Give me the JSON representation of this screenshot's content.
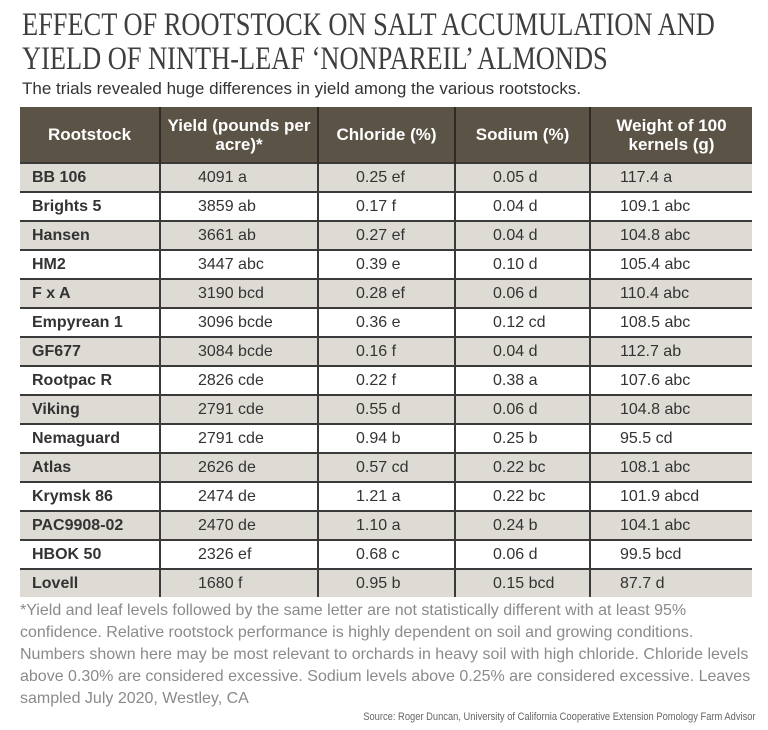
{
  "title_line1": "EFFECT OF ROOTSTOCK ON SALT ACCUMULATION AND",
  "title_line2": "YIELD OF NINTH-LEAF ‘NONPAREIL’ ALMONDS",
  "subtitle": "The trials revealed huge differences in yield among the various rootstocks.",
  "table": {
    "headers": [
      "Rootstock",
      "Yield (pounds per acre)*",
      "Chloride (%)",
      "Sodium (%)",
      "Weight of 100 kernels (g)"
    ],
    "rows": [
      [
        "BB 106",
        "4091 a",
        "0.25 ef",
        "0.05 d",
        "117.4 a"
      ],
      [
        "Brights 5",
        "3859 ab",
        "0.17 f",
        "0.04 d",
        "109.1 abc"
      ],
      [
        "Hansen",
        "3661 ab",
        "0.27 ef",
        "0.04 d",
        "104.8 abc"
      ],
      [
        "HM2",
        "3447 abc",
        "0.39 e",
        "0.10 d",
        "105.4 abc"
      ],
      [
        "F x A",
        "3190 bcd",
        "0.28 ef",
        "0.06 d",
        "110.4 abc"
      ],
      [
        "Empyrean 1",
        "3096 bcde",
        "0.36 e",
        "0.12 cd",
        "108.5 abc"
      ],
      [
        "GF677",
        "3084 bcde",
        "0.16 f",
        "0.04 d",
        "112.7 ab"
      ],
      [
        "Rootpac R",
        "2826 cde",
        "0.22 f",
        "0.38 a",
        "107.6 abc"
      ],
      [
        "Viking",
        "2791 cde",
        "0.55 d",
        "0.06 d",
        "104.8 abc"
      ],
      [
        "Nemaguard",
        "2791 cde",
        "0.94 b",
        "0.25 b",
        "95.5 cd"
      ],
      [
        "Atlas",
        "2626 de",
        "0.57 cd",
        "0.22 bc",
        "108.1 abc"
      ],
      [
        "Krymsk 86",
        "2474 de",
        "1.21 a",
        "0.22 bc",
        "101.9 abcd"
      ],
      [
        "PAC9908-02",
        "2470 de",
        "1.10 a",
        "0.24 b",
        "104.1 abc"
      ],
      [
        "HBOK 50",
        "2326 ef",
        "0.68 c",
        "0.06 d",
        "99.5 bcd"
      ],
      [
        "Lovell",
        "1680 f",
        "0.95 b",
        "0.15 bcd",
        "87.7 d"
      ]
    ]
  },
  "footnote": "*Yield and leaf levels followed by the same letter are not statistically different with at least 95% confidence. Relative rootstock performance is highly dependent on soil and growing conditions. Numbers shown here may be most relevant to orchards in heavy soil with high chloride. Chloride levels above 0.30% are considered excessive. Sodium levels above 0.25% are considered excessive. Leaves sampled July 2020, Westley, CA",
  "source": "Source: Roger Duncan, University of California Cooperative Extension Pomology Farm Advisor",
  "colors": {
    "header_bg": "#5b5345",
    "row_alt_bg": "#dedbd4"
  }
}
